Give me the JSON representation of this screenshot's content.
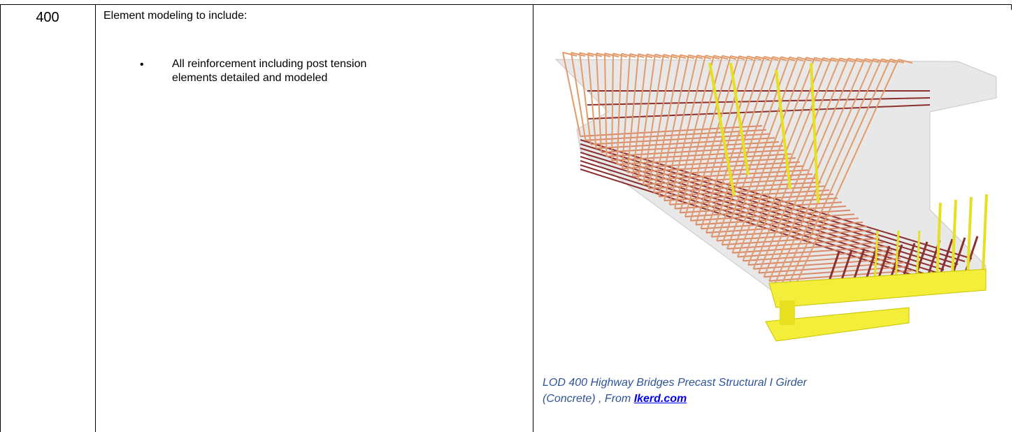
{
  "table": {
    "rows": [
      {
        "level": "400",
        "description": "Element modeling to include:",
        "bullets": [
          "All reinforcement including post tension elements detailed and modeled"
        ],
        "caption": "LOD 400 Highway Bridges Precast Structural I Girder (Concrete) , From ",
        "caption_link": "Ikerd.com"
      }
    ]
  }
}
